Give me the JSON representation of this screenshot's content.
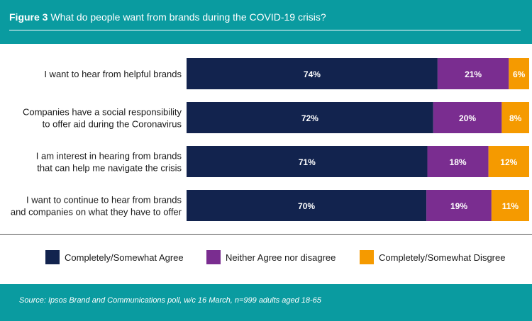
{
  "header": {
    "figure_label": "Figure 3",
    "title": "What do people want from brands during the COVID-19 crisis?"
  },
  "colors": {
    "teal": "#0a9ba0",
    "agree": "#12234e",
    "neither": "#7a2d90",
    "disagree": "#f59a00"
  },
  "chart_data": {
    "type": "bar",
    "orientation": "horizontal",
    "stacked": true,
    "title": "What do people want from brands during the COVID-19 crisis?",
    "categories": [
      [
        "I want to hear from helpful brands"
      ],
      [
        "Companies have a social responsibility",
        "to offer aid during the Coronavirus"
      ],
      [
        "I am interest in hearing from brands",
        "that can help me navigate the crisis"
      ],
      [
        "I want to continue to hear from brands",
        "and companies on what they have to offer"
      ]
    ],
    "series": [
      {
        "name": "Completely/Somewhat Agree",
        "values": [
          74,
          72,
          71,
          70
        ],
        "labels": [
          "74%",
          "72%",
          "71%",
          "70%"
        ]
      },
      {
        "name": "Neither Agree nor disagree",
        "values": [
          21,
          20,
          18,
          19
        ],
        "labels": [
          "21%",
          "20%",
          "18%",
          "19%"
        ]
      },
      {
        "name": "Completely/Somewhat Disgree",
        "values": [
          6,
          8,
          12,
          11
        ],
        "labels": [
          "6%",
          "8%",
          "12%",
          "11%"
        ]
      }
    ],
    "xlim": [
      0,
      100
    ],
    "xlabel": "",
    "ylabel": "",
    "legend": "bottom",
    "grid": false
  },
  "legend": [
    {
      "label": "Completely/Somewhat Agree",
      "color": "#12234e"
    },
    {
      "label": "Neither Agree nor disagree",
      "color": "#7a2d90"
    },
    {
      "label": "Completely/Somewhat Disgree",
      "color": "#f59a00"
    }
  ],
  "footer": {
    "source": "Source: Ipsos Brand and Communications poll, w/c 16 March, n=999 adults aged 18-65"
  }
}
